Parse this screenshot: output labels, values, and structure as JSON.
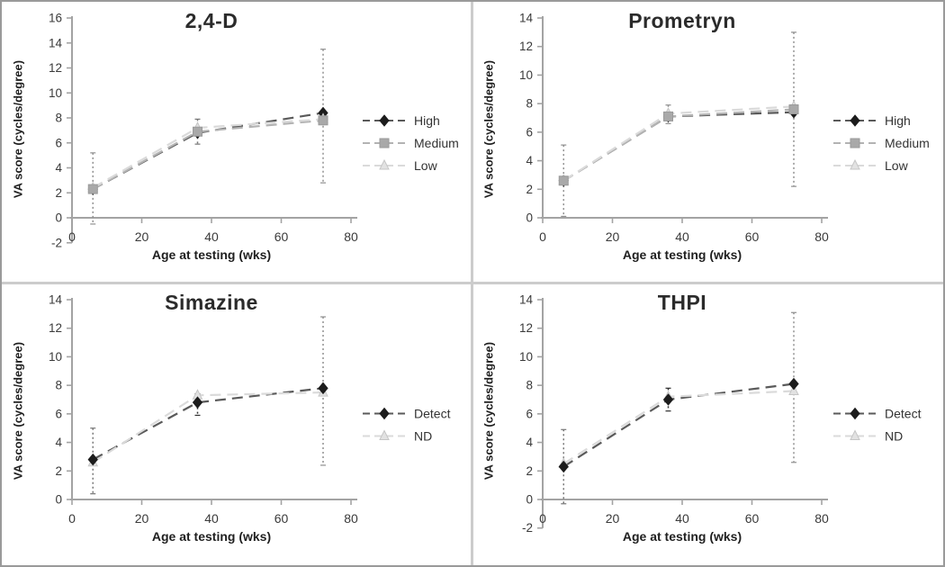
{
  "colors": {
    "axis": "#a3a3a3",
    "tick_text": "#3a3a3a",
    "outer_border": "#9a9a9a",
    "panel_divider": "#cccccc",
    "high_marker": "#1c1c1c",
    "medium_marker": "#a9a9a9",
    "low_marker": "#e2e2e2",
    "error_bar_gray": "#909090",
    "error_bar_dark": "#2e2e2e"
  },
  "chart_data": [
    {
      "type": "line",
      "title": "2,4-D",
      "xlabel": "Age at testing (wks)",
      "ylabel": "VA score (cycles/degree)",
      "xlim": [
        0,
        80
      ],
      "ylim": [
        -2,
        16
      ],
      "xticks": [
        0,
        20,
        40,
        60,
        80
      ],
      "yticks": [
        -2,
        0,
        2,
        4,
        6,
        8,
        10,
        12,
        14,
        16
      ],
      "x": [
        6,
        36,
        72
      ],
      "series": [
        {
          "name": "High",
          "marker": "diamond",
          "color": "#1c1c1c",
          "edge": "#1c1c1c",
          "line_color": "#5a5a5a",
          "values": [
            2.3,
            6.8,
            8.4
          ]
        },
        {
          "name": "Medium",
          "marker": "square",
          "color": "#a9a9a9",
          "edge": "#9a9a9a",
          "line_color": "#b3b3b3",
          "values": [
            2.3,
            6.9,
            7.8
          ]
        },
        {
          "name": "Low",
          "marker": "triangle",
          "color": "#e2e2e2",
          "edge": "#c6c6c6",
          "line_color": "#dadada",
          "values": [
            2.4,
            7.2,
            7.9
          ]
        }
      ],
      "error_bars": [
        {
          "x": 6,
          "lo": -0.5,
          "hi": 5.2,
          "color": "#909090"
        },
        {
          "x": 36,
          "lo": 5.9,
          "hi": 7.9,
          "color": "#777777"
        },
        {
          "x": 72,
          "lo": 2.8,
          "hi": 13.5,
          "color": "#909090"
        }
      ]
    },
    {
      "type": "line",
      "title": "Prometryn",
      "xlabel": "Age at testing (wks)",
      "ylabel": "VA score (cycles/degree)",
      "xlim": [
        0,
        80
      ],
      "ylim": [
        0,
        14
      ],
      "xticks": [
        0,
        20,
        40,
        60,
        80
      ],
      "yticks": [
        0,
        2,
        4,
        6,
        8,
        10,
        12,
        14
      ],
      "x": [
        6,
        36,
        72
      ],
      "series": [
        {
          "name": "High",
          "marker": "diamond",
          "color": "#1c1c1c",
          "edge": "#1c1c1c",
          "line_color": "#5a5a5a",
          "values": [
            2.6,
            7.1,
            7.4
          ]
        },
        {
          "name": "Medium",
          "marker": "square",
          "color": "#a9a9a9",
          "edge": "#9a9a9a",
          "line_color": "#b3b3b3",
          "values": [
            2.6,
            7.1,
            7.6
          ]
        },
        {
          "name": "Low",
          "marker": "triangle",
          "color": "#e2e2e2",
          "edge": "#c6c6c6",
          "line_color": "#dadada",
          "values": [
            2.6,
            7.3,
            7.8
          ]
        }
      ],
      "error_bars": [
        {
          "x": 6,
          "lo": 0.1,
          "hi": 5.1,
          "color": "#909090"
        },
        {
          "x": 36,
          "lo": 6.6,
          "hi": 7.9,
          "color": "#909090"
        },
        {
          "x": 72,
          "lo": 2.2,
          "hi": 13.0,
          "color": "#909090"
        }
      ]
    },
    {
      "type": "line",
      "title": "Simazine",
      "xlabel": "Age at testing (wks)",
      "ylabel": "VA score (cycles/degree)",
      "xlim": [
        0,
        80
      ],
      "ylim": [
        0,
        14
      ],
      "xticks": [
        0,
        20,
        40,
        60,
        80
      ],
      "yticks": [
        0,
        2,
        4,
        6,
        8,
        10,
        12,
        14
      ],
      "x": [
        6,
        36,
        72
      ],
      "series": [
        {
          "name": "Detect",
          "marker": "diamond",
          "color": "#1c1c1c",
          "edge": "#1c1c1c",
          "line_color": "#5a5a5a",
          "values": [
            2.8,
            6.8,
            7.8
          ]
        },
        {
          "name": "ND",
          "marker": "triangle",
          "color": "#e2e2e2",
          "edge": "#c6c6c6",
          "line_color": "#dadada",
          "values": [
            2.6,
            7.3,
            7.5
          ]
        }
      ],
      "error_bars": [
        {
          "x": 6,
          "lo": 0.4,
          "hi": 5.0,
          "color": "#777777"
        },
        {
          "x": 36,
          "lo": 5.9,
          "hi": 7.4,
          "color": "#2e2e2e"
        },
        {
          "x": 72,
          "lo": 2.4,
          "hi": 12.8,
          "color": "#909090"
        }
      ]
    },
    {
      "type": "line",
      "title": "THPI",
      "xlabel": "Age at testing (wks)",
      "ylabel": "VA score (cycles/degree)",
      "xlim": [
        0,
        80
      ],
      "ylim": [
        -2,
        14
      ],
      "xticks": [
        0,
        20,
        40,
        60,
        80
      ],
      "yticks": [
        -2,
        0,
        2,
        4,
        6,
        8,
        10,
        12,
        14
      ],
      "x": [
        6,
        36,
        72
      ],
      "series": [
        {
          "name": "Detect",
          "marker": "diamond",
          "color": "#1c1c1c",
          "edge": "#1c1c1c",
          "line_color": "#5a5a5a",
          "values": [
            2.3,
            7.0,
            8.1
          ]
        },
        {
          "name": "ND",
          "marker": "triangle",
          "color": "#e2e2e2",
          "edge": "#c6c6c6",
          "line_color": "#dadada",
          "values": [
            2.5,
            7.2,
            7.6
          ]
        }
      ],
      "error_bars": [
        {
          "x": 6,
          "lo": -0.3,
          "hi": 4.9,
          "color": "#777777"
        },
        {
          "x": 36,
          "lo": 6.2,
          "hi": 7.8,
          "color": "#2e2e2e"
        },
        {
          "x": 72,
          "lo": 2.6,
          "hi": 13.1,
          "color": "#909090"
        }
      ]
    }
  ]
}
